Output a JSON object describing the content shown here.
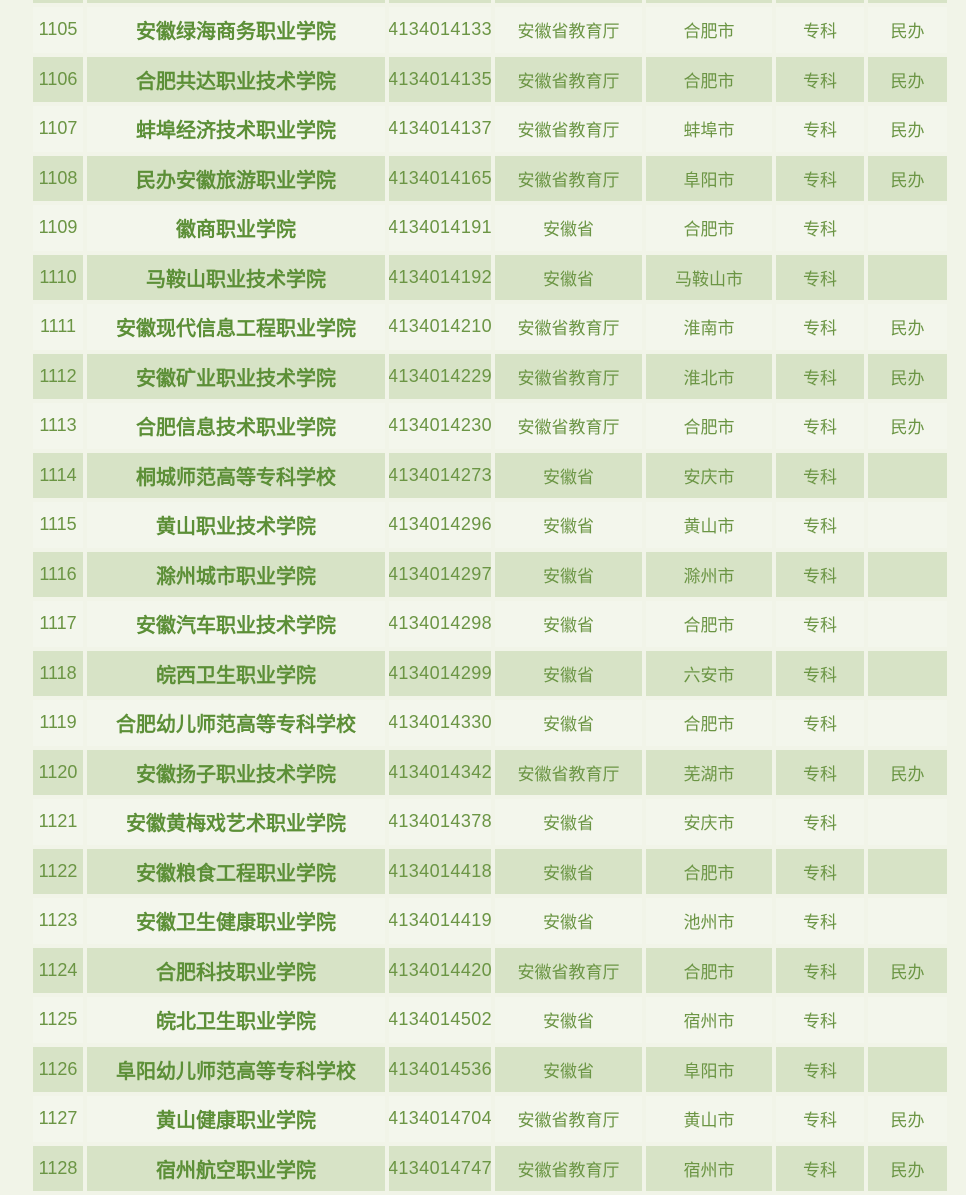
{
  "page": {
    "background": "#f1f4e8"
  },
  "table": {
    "style": {
      "row_light": "#f3f6ec",
      "row_green": "#d7e3c6",
      "gap_color": "#fcfdf8",
      "text_green": "#6b9544",
      "name_green": "#5c8f37"
    },
    "rows": [
      {
        "no": "1105",
        "name": "安徽绿海商务职业学院",
        "code": "4134014133",
        "dept": "安徽省教育厅",
        "city": "合肥市",
        "level": "专科",
        "note": "民办"
      },
      {
        "no": "1106",
        "name": "合肥共达职业技术学院",
        "code": "4134014135",
        "dept": "安徽省教育厅",
        "city": "合肥市",
        "level": "专科",
        "note": "民办"
      },
      {
        "no": "1107",
        "name": "蚌埠经济技术职业学院",
        "code": "4134014137",
        "dept": "安徽省教育厅",
        "city": "蚌埠市",
        "level": "专科",
        "note": "民办"
      },
      {
        "no": "1108",
        "name": "民办安徽旅游职业学院",
        "code": "4134014165",
        "dept": "安徽省教育厅",
        "city": "阜阳市",
        "level": "专科",
        "note": "民办"
      },
      {
        "no": "1109",
        "name": "徽商职业学院",
        "code": "4134014191",
        "dept": "安徽省",
        "city": "合肥市",
        "level": "专科",
        "note": ""
      },
      {
        "no": "1110",
        "name": "马鞍山职业技术学院",
        "code": "4134014192",
        "dept": "安徽省",
        "city": "马鞍山市",
        "level": "专科",
        "note": ""
      },
      {
        "no": "1111",
        "name": "安徽现代信息工程职业学院",
        "code": "4134014210",
        "dept": "安徽省教育厅",
        "city": "淮南市",
        "level": "专科",
        "note": "民办"
      },
      {
        "no": "1112",
        "name": "安徽矿业职业技术学院",
        "code": "4134014229",
        "dept": "安徽省教育厅",
        "city": "淮北市",
        "level": "专科",
        "note": "民办"
      },
      {
        "no": "1113",
        "name": "合肥信息技术职业学院",
        "code": "4134014230",
        "dept": "安徽省教育厅",
        "city": "合肥市",
        "level": "专科",
        "note": "民办"
      },
      {
        "no": "1114",
        "name": "桐城师范高等专科学校",
        "code": "4134014273",
        "dept": "安徽省",
        "city": "安庆市",
        "level": "专科",
        "note": ""
      },
      {
        "no": "1115",
        "name": "黄山职业技术学院",
        "code": "4134014296",
        "dept": "安徽省",
        "city": "黄山市",
        "level": "专科",
        "note": ""
      },
      {
        "no": "1116",
        "name": "滁州城市职业学院",
        "code": "4134014297",
        "dept": "安徽省",
        "city": "滁州市",
        "level": "专科",
        "note": ""
      },
      {
        "no": "1117",
        "name": "安徽汽车职业技术学院",
        "code": "4134014298",
        "dept": "安徽省",
        "city": "合肥市",
        "level": "专科",
        "note": ""
      },
      {
        "no": "1118",
        "name": "皖西卫生职业学院",
        "code": "4134014299",
        "dept": "安徽省",
        "city": "六安市",
        "level": "专科",
        "note": ""
      },
      {
        "no": "1119",
        "name": "合肥幼儿师范高等专科学校",
        "code": "4134014330",
        "dept": "安徽省",
        "city": "合肥市",
        "level": "专科",
        "note": ""
      },
      {
        "no": "1120",
        "name": "安徽扬子职业技术学院",
        "code": "4134014342",
        "dept": "安徽省教育厅",
        "city": "芜湖市",
        "level": "专科",
        "note": "民办"
      },
      {
        "no": "1121",
        "name": "安徽黄梅戏艺术职业学院",
        "code": "4134014378",
        "dept": "安徽省",
        "city": "安庆市",
        "level": "专科",
        "note": ""
      },
      {
        "no": "1122",
        "name": "安徽粮食工程职业学院",
        "code": "4134014418",
        "dept": "安徽省",
        "city": "合肥市",
        "level": "专科",
        "note": ""
      },
      {
        "no": "1123",
        "name": "安徽卫生健康职业学院",
        "code": "4134014419",
        "dept": "安徽省",
        "city": "池州市",
        "level": "专科",
        "note": ""
      },
      {
        "no": "1124",
        "name": "合肥科技职业学院",
        "code": "4134014420",
        "dept": "安徽省教育厅",
        "city": "合肥市",
        "level": "专科",
        "note": "民办"
      },
      {
        "no": "1125",
        "name": "皖北卫生职业学院",
        "code": "4134014502",
        "dept": "安徽省",
        "city": "宿州市",
        "level": "专科",
        "note": ""
      },
      {
        "no": "1126",
        "name": "阜阳幼儿师范高等专科学校",
        "code": "4134014536",
        "dept": "安徽省",
        "city": "阜阳市",
        "level": "专科",
        "note": ""
      },
      {
        "no": "1127",
        "name": "黄山健康职业学院",
        "code": "4134014704",
        "dept": "安徽省教育厅",
        "city": "黄山市",
        "level": "专科",
        "note": "民办"
      },
      {
        "no": "1128",
        "name": "宿州航空职业学院",
        "code": "4134014747",
        "dept": "安徽省教育厅",
        "city": "宿州市",
        "level": "专科",
        "note": "民办"
      }
    ]
  }
}
